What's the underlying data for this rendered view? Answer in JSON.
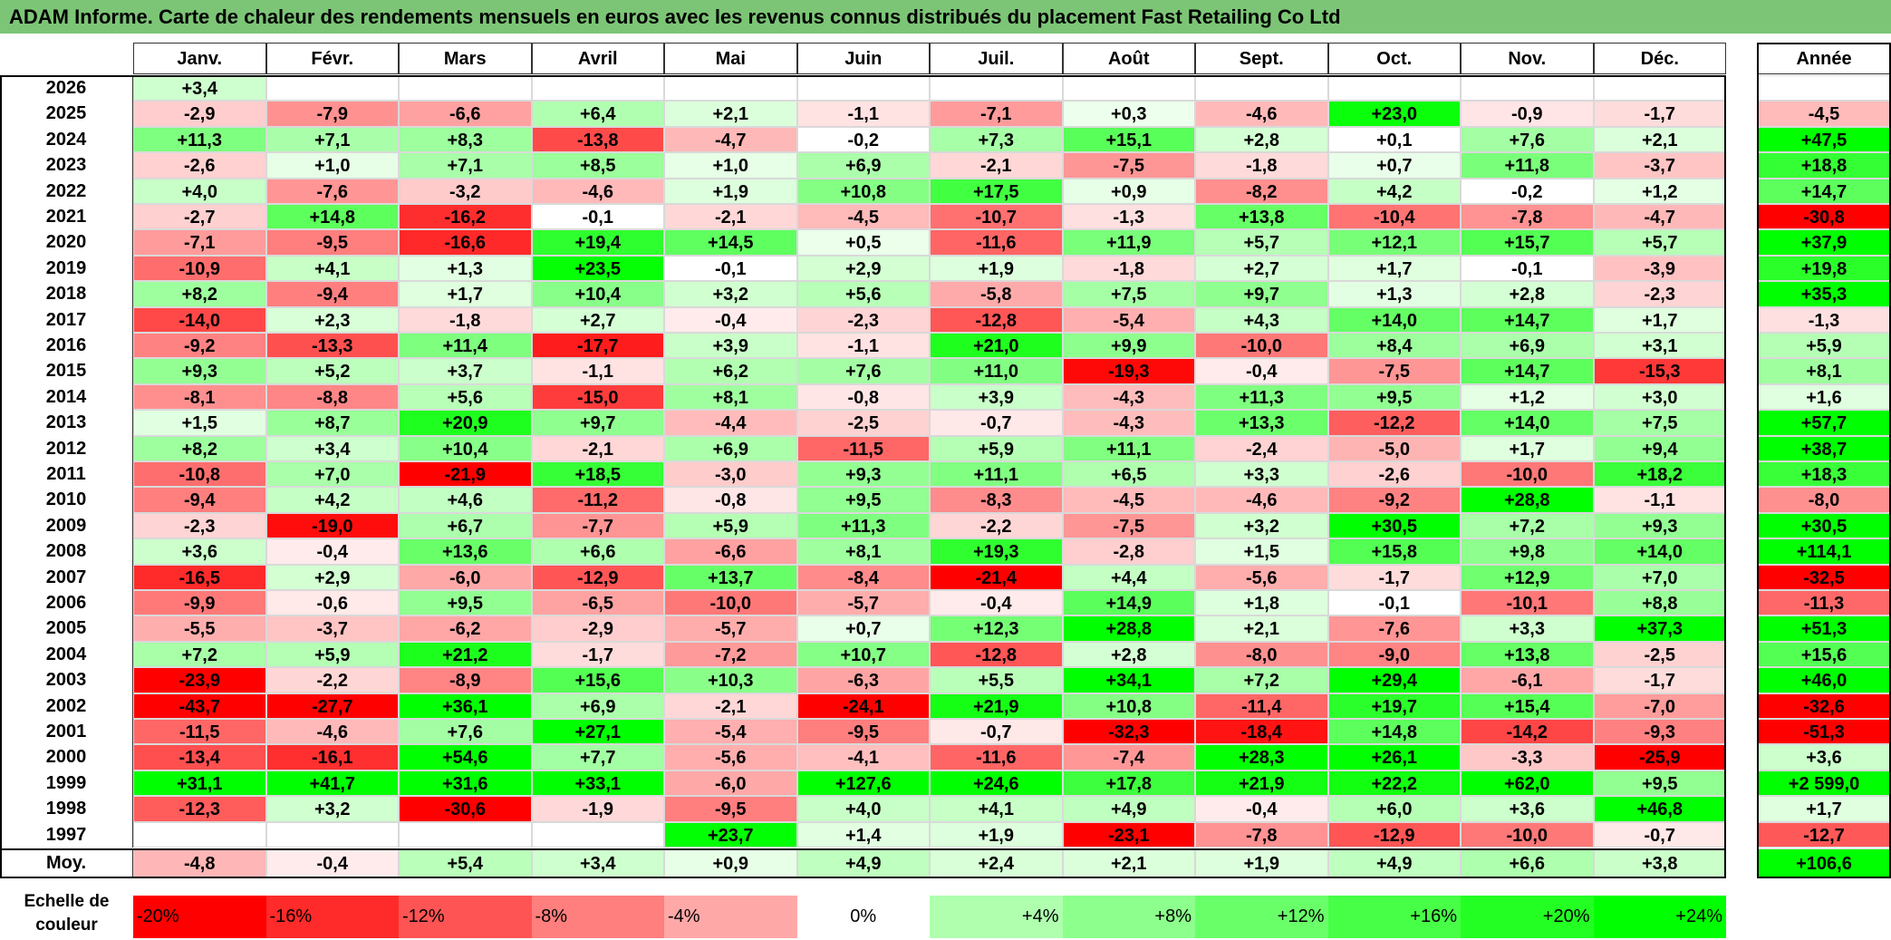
{
  "title": "ADAM Informe. Carte de chaleur des rendements mensuels en euros avec les revenus connus distribués du placement Fast Retailing Co Ltd",
  "months": [
    "Janv.",
    "Févr.",
    "Mars",
    "Avril",
    "Mai",
    "Juin",
    "Juil.",
    "Août",
    "Sept.",
    "Oct.",
    "Nov.",
    "Déc."
  ],
  "annual_header": "Année",
  "average_label": "Moy.",
  "scale_label": "Echelle de couleur",
  "colors": {
    "red": "#ff0000",
    "green": "#00ff00",
    "white": "#ffffff",
    "title_bg": "#7cc576"
  },
  "chart_data": {
    "type": "heatmap",
    "title": "ADAM Informe. Carte de chaleur des rendements mensuels en euros avec les revenus connus distribués du placement Fast Retailing Co Ltd",
    "x": [
      "Janv.",
      "Févr.",
      "Mars",
      "Avril",
      "Mai",
      "Juin",
      "Juil.",
      "Août",
      "Sept.",
      "Oct.",
      "Nov.",
      "Déc."
    ],
    "rows": [
      {
        "year": "2026",
        "months": [
          "+3,4",
          "",
          "",
          "",
          "",
          "",
          "",
          "",
          "",
          "",
          "",
          ""
        ],
        "annual": ""
      },
      {
        "year": "2025",
        "months": [
          "-2,9",
          "-7,9",
          "-6,6",
          "+6,4",
          "+2,1",
          "-1,1",
          "-7,1",
          "+0,3",
          "-4,6",
          "+23,0",
          "-0,9",
          "-1,7"
        ],
        "annual": "-4,5"
      },
      {
        "year": "2024",
        "months": [
          "+11,3",
          "+7,1",
          "+8,3",
          "-13,8",
          "-4,7",
          "-0,2",
          "+7,3",
          "+15,1",
          "+2,8",
          "+0,1",
          "+7,6",
          "+2,1"
        ],
        "annual": "+47,5"
      },
      {
        "year": "2023",
        "months": [
          "-2,6",
          "+1,0",
          "+7,1",
          "+8,5",
          "+1,0",
          "+6,9",
          "-2,1",
          "-7,5",
          "-1,8",
          "+0,7",
          "+11,8",
          "-3,7"
        ],
        "annual": "+18,8"
      },
      {
        "year": "2022",
        "months": [
          "+4,0",
          "-7,6",
          "-3,2",
          "-4,6",
          "+1,9",
          "+10,8",
          "+17,5",
          "+0,9",
          "-8,2",
          "+4,2",
          "-0,2",
          "+1,2"
        ],
        "annual": "+14,7"
      },
      {
        "year": "2021",
        "months": [
          "-2,7",
          "+14,8",
          "-16,2",
          "-0,1",
          "-2,1",
          "-4,5",
          "-10,7",
          "-1,3",
          "+13,8",
          "-10,4",
          "-7,8",
          "-4,7"
        ],
        "annual": "-30,8"
      },
      {
        "year": "2020",
        "months": [
          "-7,1",
          "-9,5",
          "-16,6",
          "+19,4",
          "+14,5",
          "+0,5",
          "-11,6",
          "+11,9",
          "+5,7",
          "+12,1",
          "+15,7",
          "+5,7"
        ],
        "annual": "+37,9"
      },
      {
        "year": "2019",
        "months": [
          "-10,9",
          "+4,1",
          "+1,3",
          "+23,5",
          "-0,1",
          "+2,9",
          "+1,9",
          "-1,8",
          "+2,7",
          "+1,7",
          "-0,1",
          "-3,9"
        ],
        "annual": "+19,8"
      },
      {
        "year": "2018",
        "months": [
          "+8,2",
          "-9,4",
          "+1,7",
          "+10,4",
          "+3,2",
          "+5,6",
          "-5,8",
          "+7,5",
          "+9,7",
          "+1,3",
          "+2,8",
          "-2,3"
        ],
        "annual": "+35,3"
      },
      {
        "year": "2017",
        "months": [
          "-14,0",
          "+2,3",
          "-1,8",
          "+2,7",
          "-0,4",
          "-2,3",
          "-12,8",
          "-5,4",
          "+4,3",
          "+14,0",
          "+14,7",
          "+1,7"
        ],
        "annual": "-1,3"
      },
      {
        "year": "2016",
        "months": [
          "-9,2",
          "-13,3",
          "+11,4",
          "-17,7",
          "+3,9",
          "-1,1",
          "+21,0",
          "+9,9",
          "-10,0",
          "+8,4",
          "+6,9",
          "+3,1"
        ],
        "annual": "+5,9"
      },
      {
        "year": "2015",
        "months": [
          "+9,3",
          "+5,2",
          "+3,7",
          "-1,1",
          "+6,2",
          "+7,6",
          "+11,0",
          "-19,3",
          "-0,4",
          "-7,5",
          "+14,7",
          "-15,3"
        ],
        "annual": "+8,1"
      },
      {
        "year": "2014",
        "months": [
          "-8,1",
          "-8,8",
          "+5,6",
          "-15,0",
          "+8,1",
          "-0,8",
          "+3,9",
          "-4,3",
          "+11,3",
          "+9,5",
          "+1,2",
          "+3,0"
        ],
        "annual": "+1,6"
      },
      {
        "year": "2013",
        "months": [
          "+1,5",
          "+8,7",
          "+20,9",
          "+9,7",
          "-4,4",
          "-2,5",
          "-0,7",
          "-4,3",
          "+13,3",
          "-12,2",
          "+14,0",
          "+7,5"
        ],
        "annual": "+57,7"
      },
      {
        "year": "2012",
        "months": [
          "+8,2",
          "+3,4",
          "+10,4",
          "-2,1",
          "+6,9",
          "-11,5",
          "+5,9",
          "+11,1",
          "-2,4",
          "-5,0",
          "+1,7",
          "+9,4"
        ],
        "annual": "+38,7"
      },
      {
        "year": "2011",
        "months": [
          "-10,8",
          "+7,0",
          "-21,9",
          "+18,5",
          "-3,0",
          "+9,3",
          "+11,1",
          "+6,5",
          "+3,3",
          "-2,6",
          "-10,0",
          "+18,2"
        ],
        "annual": "+18,3"
      },
      {
        "year": "2010",
        "months": [
          "-9,4",
          "+4,2",
          "+4,6",
          "-11,2",
          "-0,8",
          "+9,5",
          "-8,3",
          "-4,5",
          "-4,6",
          "-9,2",
          "+28,8",
          "-1,1"
        ],
        "annual": "-8,0"
      },
      {
        "year": "2009",
        "months": [
          "-2,3",
          "-19,0",
          "+6,7",
          "-7,7",
          "+5,9",
          "+11,3",
          "-2,2",
          "-7,5",
          "+3,2",
          "+30,5",
          "+7,2",
          "+9,3"
        ],
        "annual": "+30,5"
      },
      {
        "year": "2008",
        "months": [
          "+3,6",
          "-0,4",
          "+13,6",
          "+6,6",
          "-6,6",
          "+8,1",
          "+19,3",
          "-2,8",
          "+1,5",
          "+15,8",
          "+9,8",
          "+14,0"
        ],
        "annual": "+114,1"
      },
      {
        "year": "2007",
        "months": [
          "-16,5",
          "+2,9",
          "-6,0",
          "-12,9",
          "+13,7",
          "-8,4",
          "-21,4",
          "+4,4",
          "-5,6",
          "-1,7",
          "+12,9",
          "+7,0"
        ],
        "annual": "-32,5"
      },
      {
        "year": "2006",
        "months": [
          "-9,9",
          "-0,6",
          "+9,5",
          "-6,5",
          "-10,0",
          "-5,7",
          "-0,4",
          "+14,9",
          "+1,8",
          "-0,1",
          "-10,1",
          "+8,8"
        ],
        "annual": "-11,3"
      },
      {
        "year": "2005",
        "months": [
          "-5,5",
          "-3,7",
          "-6,2",
          "-2,9",
          "-5,7",
          "+0,7",
          "+12,3",
          "+28,8",
          "+2,1",
          "-7,6",
          "+3,3",
          "+37,3"
        ],
        "annual": "+51,3"
      },
      {
        "year": "2004",
        "months": [
          "+7,2",
          "+5,9",
          "+21,2",
          "-1,7",
          "-7,2",
          "+10,7",
          "-12,8",
          "+2,8",
          "-8,0",
          "-9,0",
          "+13,8",
          "-2,5"
        ],
        "annual": "+15,6"
      },
      {
        "year": "2003",
        "months": [
          "-23,9",
          "-2,2",
          "-8,9",
          "+15,6",
          "+10,3",
          "-6,3",
          "+5,5",
          "+34,1",
          "+7,2",
          "+29,4",
          "-6,1",
          "-1,7"
        ],
        "annual": "+46,0"
      },
      {
        "year": "2002",
        "months": [
          "-43,7",
          "-27,7",
          "+36,1",
          "+6,9",
          "-2,1",
          "-24,1",
          "+21,9",
          "+10,8",
          "-11,4",
          "+19,7",
          "+15,4",
          "-7,0"
        ],
        "annual": "-32,6"
      },
      {
        "year": "2001",
        "months": [
          "-11,5",
          "-4,6",
          "+7,6",
          "+27,1",
          "-5,4",
          "-9,5",
          "-0,7",
          "-32,3",
          "-18,4",
          "+14,8",
          "-14,2",
          "-9,3"
        ],
        "annual": "-51,3"
      },
      {
        "year": "2000",
        "months": [
          "-13,4",
          "-16,1",
          "+54,6",
          "+7,7",
          "-5,6",
          "-4,1",
          "-11,6",
          "-7,4",
          "+28,3",
          "+26,1",
          "-3,3",
          "-25,9"
        ],
        "annual": "+3,6"
      },
      {
        "year": "1999",
        "months": [
          "+31,1",
          "+41,7",
          "+31,6",
          "+33,1",
          "-6,0",
          "+127,6",
          "+24,6",
          "+17,8",
          "+21,9",
          "+22,2",
          "+62,0",
          "+9,5"
        ],
        "annual": "+2 599,0"
      },
      {
        "year": "1998",
        "months": [
          "-12,3",
          "+3,2",
          "-30,6",
          "-1,9",
          "-9,5",
          "+4,0",
          "+4,1",
          "+4,9",
          "-0,4",
          "+6,0",
          "+3,6",
          "+46,8"
        ],
        "annual": "+1,7"
      },
      {
        "year": "1997",
        "months": [
          "",
          "",
          "",
          "",
          "+23,7",
          "+1,4",
          "+1,9",
          "-23,1",
          "-7,8",
          "-12,9",
          "-10,0",
          "-0,7"
        ],
        "annual": "-12,7"
      }
    ],
    "average": {
      "months": [
        "-4,8",
        "-0,4",
        "+5,4",
        "+3,4",
        "+0,9",
        "+4,9",
        "+2,4",
        "+2,1",
        "+1,9",
        "+4,9",
        "+6,6",
        "+3,8"
      ],
      "annual": "+106,6"
    },
    "scale": [
      "-20%",
      "-16%",
      "-12%",
      "-8%",
      "-4%",
      "0%",
      "+4%",
      "+8%",
      "+12%",
      "+16%",
      "+20%",
      "+24%"
    ]
  }
}
